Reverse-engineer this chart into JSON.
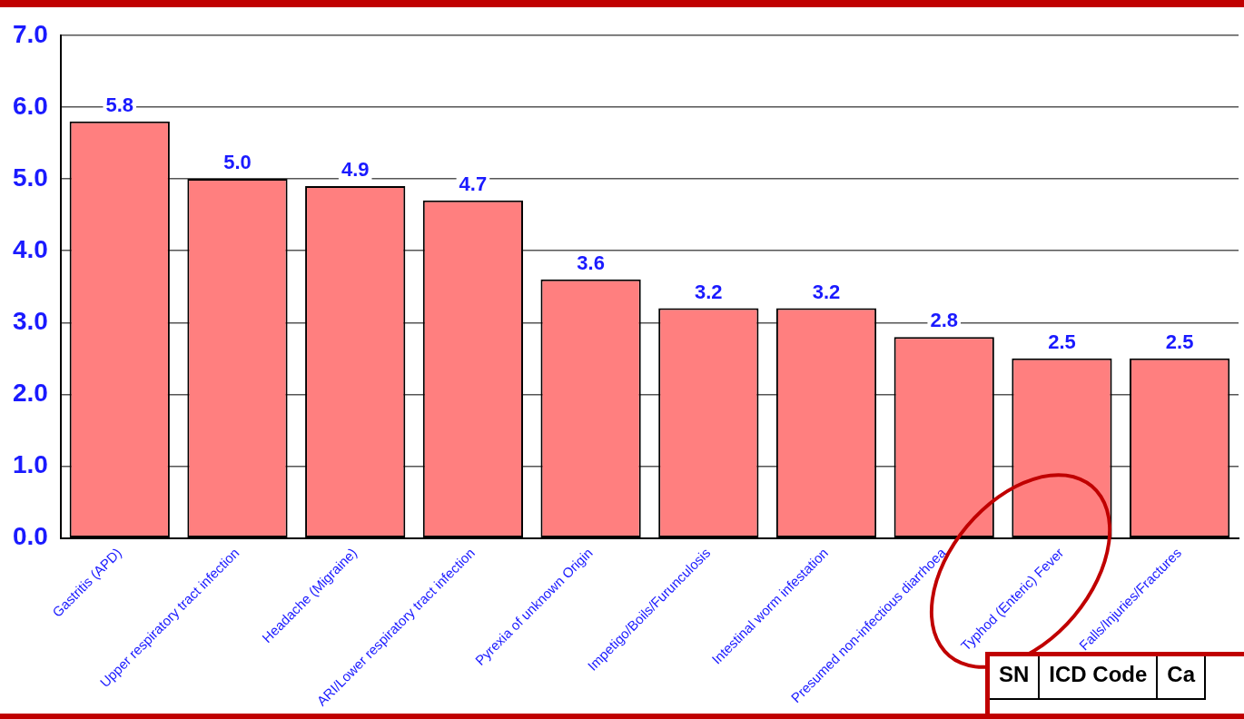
{
  "chart_data": {
    "type": "bar",
    "categories": [
      "Gastritis (APD)",
      "Upper respiratory tract infection",
      "Headache (Migraine)",
      "ARI/Lower respiratory tract infection",
      "Pyrexia of unknown Origin",
      "Impetigo/Boils/Furunculosis",
      "Intestinal worm infestation",
      "Presumed non-infectious diarrhoea",
      "Typhod (Enteric) Fever",
      "Falls/Injuries/Fractures"
    ],
    "values": [
      5.8,
      5.0,
      4.9,
      4.7,
      3.6,
      3.2,
      3.2,
      2.8,
      2.5,
      2.5
    ],
    "value_labels": [
      "5.8",
      "5.0",
      "4.9",
      "4.7",
      "3.6",
      "3.2",
      "3.2",
      "2.8",
      "2.5",
      "2.5"
    ],
    "color": "#ff7f7f",
    "ylim": [
      0,
      7
    ],
    "yticks": [
      {
        "value": 0,
        "label": "0.0"
      },
      {
        "value": 1,
        "label": "1.0"
      },
      {
        "value": 2,
        "label": "2.0"
      },
      {
        "value": 3,
        "label": "3.0"
      },
      {
        "value": 4,
        "label": "4.0"
      },
      {
        "value": 5,
        "label": "5.0"
      },
      {
        "value": 6,
        "label": "6.0"
      },
      {
        "value": 7,
        "label": "7.0"
      }
    ],
    "grid": "y",
    "legend": false,
    "annotations": [
      "SN",
      "ICD Code",
      "Ca"
    ]
  }
}
